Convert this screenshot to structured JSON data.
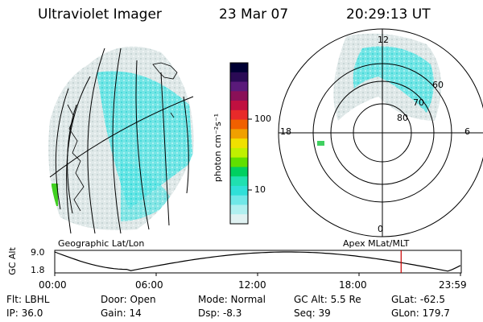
{
  "header": {
    "title": "Ultraviolet Imager",
    "date": "23 Mar 07",
    "time": "20:29:13 UT"
  },
  "colorbar": {
    "unit_label": "photon cm⁻²s⁻¹",
    "ticks": [
      "100",
      "10"
    ],
    "colors": [
      "#000033",
      "#2a0a55",
      "#5a1a7a",
      "#8a1058",
      "#c01040",
      "#e82a2a",
      "#f06000",
      "#f0a000",
      "#f0e000",
      "#c0f000",
      "#60e000",
      "#00d060",
      "#20e0b0",
      "#30e0d8",
      "#70e8e8",
      "#b0f0f0",
      "#e0f2f2"
    ]
  },
  "panels": {
    "geo_label": "Geographic Lat/Lon",
    "polar_label": "Apex MLat/MLT",
    "polar": {
      "mlt": [
        "12",
        "18",
        "6",
        "0"
      ],
      "mlat": [
        "60",
        "70",
        "80"
      ]
    }
  },
  "altitude_plot": {
    "label_top": "9.0",
    "label_bottom": "1.8",
    "ylabel": "GC Alt",
    "ylim": [
      1.8,
      9.0
    ],
    "xticks": [
      "00:00",
      "06:00",
      "12:00",
      "18:00",
      "23:59"
    ],
    "marker_hour": 20.49,
    "marker_color": "#cc0000"
  },
  "info": {
    "flt": "Flt: LBHL",
    "ip": "IP: 36.0",
    "door": "Door: Open",
    "gain": "Gain: 14",
    "mode": "Mode: Normal",
    "dsp": "Dsp:   -8.3",
    "gcalt": "GC Alt: 5.5 Re",
    "seq": "Seq: 39",
    "glat": "GLat: -62.5",
    "glon": "GLon: 179.7"
  },
  "colors": {
    "auroral_cyan": "#40e0e0",
    "diffuse_gray": "#d8e4e4",
    "marker_red": "#cc0000"
  }
}
